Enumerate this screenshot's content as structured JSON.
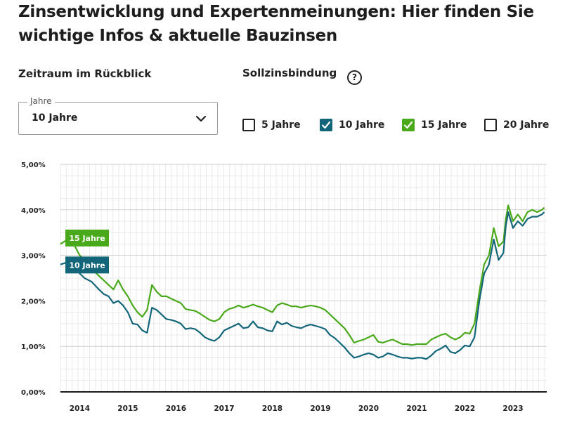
{
  "header": {
    "title": "Zinsentwicklung und Expertenmeinungen: Hier finden Sie wichtige Infos & aktuelle Bauzinsen"
  },
  "controls": {
    "period_label": "Zeitraum im Rückblick",
    "period_select": {
      "legend": "Jahre",
      "value": "10 Jahre"
    },
    "fixation_label": "Sollzinsbindung",
    "help_symbol": "?",
    "checkboxes": [
      {
        "label": "5 Jahre",
        "checked": false,
        "color": "#ffffff"
      },
      {
        "label": "10 Jahre",
        "checked": true,
        "color": "#13667a"
      },
      {
        "label": "15 Jahre",
        "checked": true,
        "color": "#4aa81b"
      },
      {
        "label": "20 Jahre",
        "checked": false,
        "color": "#ffffff"
      }
    ]
  },
  "chart_data": {
    "type": "line",
    "title": "",
    "xlabel": "",
    "ylabel": "",
    "ylim": [
      0,
      5
    ],
    "xlim": [
      2013.6,
      2023.7
    ],
    "grid": true,
    "y_tick_labels": [
      "0,00%",
      "1,00%",
      "2,00%",
      "3,00%",
      "4,00%",
      "5,00%"
    ],
    "x_tick_labels": [
      "2014",
      "2015",
      "2016",
      "2017",
      "2018",
      "2019",
      "2020",
      "2021",
      "2022",
      "2023"
    ],
    "series": [
      {
        "name": "15 Jahre",
        "color": "#4aa81b",
        "x": [
          2013.6,
          2013.75,
          2013.9,
          2014.0,
          2014.1,
          2014.25,
          2014.4,
          2014.5,
          2014.6,
          2014.7,
          2014.8,
          2014.9,
          2015.0,
          2015.1,
          2015.2,
          2015.3,
          2015.4,
          2015.5,
          2015.6,
          2015.7,
          2015.8,
          2015.9,
          2016.0,
          2016.1,
          2016.2,
          2016.3,
          2016.4,
          2016.5,
          2016.6,
          2016.7,
          2016.8,
          2016.9,
          2017.0,
          2017.1,
          2017.2,
          2017.3,
          2017.4,
          2017.5,
          2017.6,
          2017.7,
          2017.8,
          2017.9,
          2018.0,
          2018.1,
          2018.2,
          2018.3,
          2018.4,
          2018.5,
          2018.6,
          2018.7,
          2018.8,
          2018.9,
          2019.0,
          2019.1,
          2019.2,
          2019.3,
          2019.4,
          2019.5,
          2019.6,
          2019.7,
          2019.8,
          2019.9,
          2020.0,
          2020.1,
          2020.2,
          2020.3,
          2020.4,
          2020.5,
          2020.6,
          2020.7,
          2020.8,
          2020.9,
          2021.0,
          2021.1,
          2021.2,
          2021.3,
          2021.4,
          2021.5,
          2021.6,
          2021.7,
          2021.8,
          2021.9,
          2022.0,
          2022.1,
          2022.2,
          2022.3,
          2022.4,
          2022.5,
          2022.6,
          2022.7,
          2022.8,
          2022.85,
          2022.9,
          2023.0,
          2023.1,
          2023.2,
          2023.3,
          2023.4,
          2023.5,
          2023.6,
          2023.65
        ],
        "values": [
          3.25,
          3.35,
          3.2,
          3.0,
          2.9,
          2.7,
          2.55,
          2.45,
          2.35,
          2.25,
          2.45,
          2.25,
          2.1,
          1.9,
          1.75,
          1.65,
          1.8,
          2.35,
          2.2,
          2.1,
          2.1,
          2.05,
          2.0,
          1.95,
          1.82,
          1.8,
          1.78,
          1.72,
          1.65,
          1.58,
          1.55,
          1.6,
          1.75,
          1.82,
          1.85,
          1.9,
          1.85,
          1.88,
          1.92,
          1.88,
          1.85,
          1.8,
          1.75,
          1.9,
          1.95,
          1.92,
          1.88,
          1.88,
          1.85,
          1.88,
          1.9,
          1.88,
          1.85,
          1.8,
          1.7,
          1.6,
          1.5,
          1.4,
          1.25,
          1.08,
          1.12,
          1.15,
          1.2,
          1.25,
          1.1,
          1.08,
          1.12,
          1.15,
          1.1,
          1.05,
          1.05,
          1.03,
          1.05,
          1.05,
          1.05,
          1.15,
          1.2,
          1.25,
          1.28,
          1.2,
          1.15,
          1.2,
          1.3,
          1.28,
          1.5,
          2.2,
          2.8,
          3.0,
          3.6,
          3.2,
          3.3,
          3.8,
          4.1,
          3.75,
          3.9,
          3.75,
          3.95,
          4.0,
          3.95,
          4.0,
          4.05
        ]
      },
      {
        "name": "10 Jahre",
        "color": "#13667a",
        "x": [
          2013.6,
          2013.75,
          2013.9,
          2014.0,
          2014.1,
          2014.25,
          2014.4,
          2014.5,
          2014.6,
          2014.7,
          2014.8,
          2014.9,
          2015.0,
          2015.1,
          2015.2,
          2015.3,
          2015.4,
          2015.5,
          2015.6,
          2015.7,
          2015.8,
          2015.9,
          2016.0,
          2016.1,
          2016.2,
          2016.3,
          2016.4,
          2016.5,
          2016.6,
          2016.7,
          2016.8,
          2016.9,
          2017.0,
          2017.1,
          2017.2,
          2017.3,
          2017.4,
          2017.5,
          2017.6,
          2017.7,
          2017.8,
          2017.9,
          2018.0,
          2018.1,
          2018.2,
          2018.3,
          2018.4,
          2018.5,
          2018.6,
          2018.7,
          2018.8,
          2018.9,
          2019.0,
          2019.1,
          2019.2,
          2019.3,
          2019.4,
          2019.5,
          2019.6,
          2019.7,
          2019.8,
          2019.9,
          2020.0,
          2020.1,
          2020.2,
          2020.3,
          2020.4,
          2020.5,
          2020.6,
          2020.7,
          2020.8,
          2020.9,
          2021.0,
          2021.1,
          2021.2,
          2021.3,
          2021.4,
          2021.5,
          2021.6,
          2021.7,
          2021.8,
          2021.9,
          2022.0,
          2022.1,
          2022.2,
          2022.3,
          2022.4,
          2022.5,
          2022.6,
          2022.7,
          2022.8,
          2022.85,
          2022.9,
          2023.0,
          2023.1,
          2023.2,
          2023.3,
          2023.4,
          2023.5,
          2023.6,
          2023.65
        ],
        "values": [
          2.8,
          2.85,
          2.75,
          2.6,
          2.5,
          2.42,
          2.25,
          2.15,
          2.1,
          1.95,
          2.0,
          1.9,
          1.75,
          1.5,
          1.48,
          1.35,
          1.3,
          1.85,
          1.8,
          1.7,
          1.6,
          1.58,
          1.55,
          1.5,
          1.38,
          1.4,
          1.38,
          1.3,
          1.2,
          1.15,
          1.12,
          1.2,
          1.35,
          1.4,
          1.45,
          1.5,
          1.4,
          1.42,
          1.55,
          1.42,
          1.4,
          1.35,
          1.33,
          1.55,
          1.48,
          1.52,
          1.45,
          1.42,
          1.4,
          1.45,
          1.48,
          1.45,
          1.42,
          1.38,
          1.25,
          1.18,
          1.08,
          0.98,
          0.85,
          0.75,
          0.78,
          0.82,
          0.85,
          0.82,
          0.75,
          0.78,
          0.85,
          0.82,
          0.78,
          0.75,
          0.75,
          0.73,
          0.75,
          0.75,
          0.72,
          0.8,
          0.9,
          0.95,
          1.02,
          0.88,
          0.85,
          0.92,
          1.02,
          1.0,
          1.2,
          2.0,
          2.6,
          2.8,
          3.35,
          2.9,
          3.05,
          3.65,
          3.95,
          3.6,
          3.75,
          3.65,
          3.8,
          3.85,
          3.85,
          3.9,
          3.95
        ]
      }
    ]
  }
}
